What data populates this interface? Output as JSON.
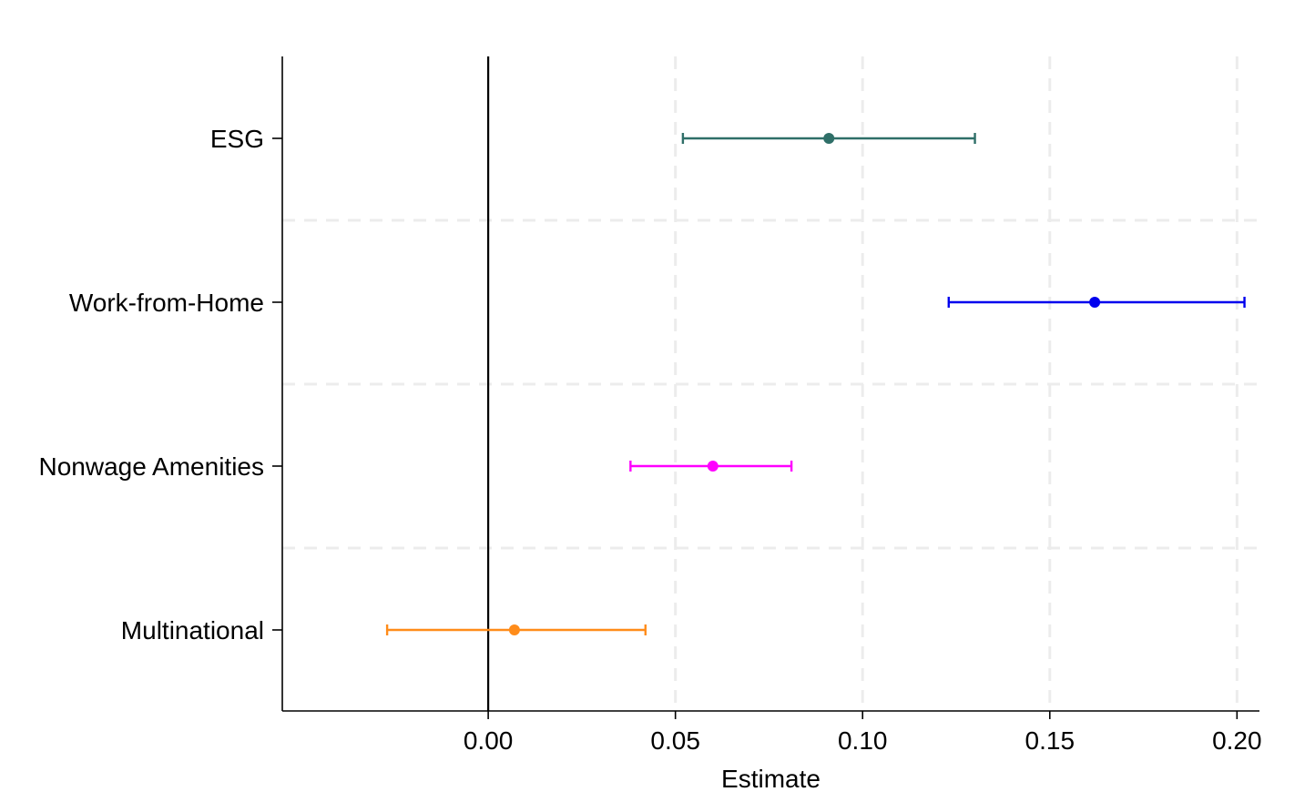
{
  "chart_data": {
    "type": "scatter",
    "subtype": "coefficient-plot",
    "title": "",
    "xlabel": "Estimate",
    "ylabel": "",
    "xlim": [
      -0.055,
      0.206
    ],
    "x_ticks": [
      0.0,
      0.05,
      0.1,
      0.15,
      0.2
    ],
    "x_tick_labels": [
      "0.00",
      "0.05",
      "0.10",
      "0.15",
      "0.20"
    ],
    "reference_line_x": 0.0,
    "grid": {
      "vertical": true,
      "horizontal_between_categories": true,
      "style": "dashed",
      "color": "#ececec"
    },
    "categories": [
      "ESG",
      "Work-from-Home",
      "Nonwage Amenities",
      "Multinational"
    ],
    "series": [
      {
        "category": "ESG",
        "estimate": 0.091,
        "ci_low": 0.052,
        "ci_high": 0.13,
        "color": "#2f6f68"
      },
      {
        "category": "Work-from-Home",
        "estimate": 0.162,
        "ci_low": 0.123,
        "ci_high": 0.202,
        "color": "#0000ee"
      },
      {
        "category": "Nonwage Amenities",
        "estimate": 0.06,
        "ci_low": 0.038,
        "ci_high": 0.081,
        "color": "#ff00ff"
      },
      {
        "category": "Multinational",
        "estimate": 0.007,
        "ci_low": -0.027,
        "ci_high": 0.042,
        "color": "#ff8c1a"
      }
    ],
    "legend": "none"
  }
}
